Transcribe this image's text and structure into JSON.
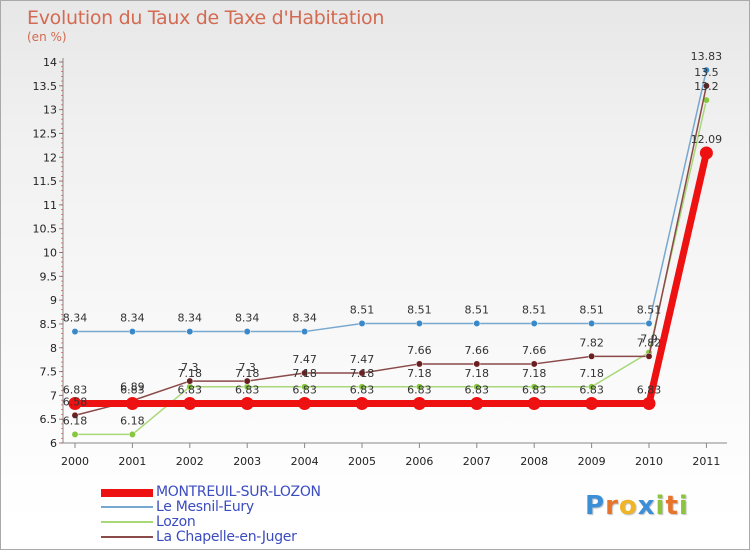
{
  "title": "Evolution du Taux de Taxe d'Habitation",
  "subtitle": "(en %)",
  "logo": {
    "text": "Proxiti",
    "letters": [
      "P",
      "r",
      "o",
      "x",
      "i",
      "t",
      "i"
    ],
    "colors": [
      "#3a8fd8",
      "#e8742c",
      "#f0b428",
      "#3a8fd8",
      "#8cc43c",
      "#e8742c",
      "#8cc43c"
    ]
  },
  "chart_data": {
    "type": "line",
    "title": "Evolution du Taux de Taxe d'Habitation",
    "ylabel": "(en %)",
    "xlabel": "",
    "ylim": [
      6,
      14
    ],
    "yticks": [
      "6",
      "6.5",
      "7",
      "7.5",
      "8",
      "8.5",
      "9",
      "9.5",
      "10",
      "10.5",
      "11",
      "11.5",
      "12",
      "12.5",
      "13",
      "13.5",
      "14"
    ],
    "categories": [
      "2000",
      "2001",
      "2002",
      "2003",
      "2004",
      "2005",
      "2006",
      "2007",
      "2008",
      "2009",
      "2010",
      "2011"
    ],
    "series": [
      {
        "name": "Le Mesnil-Eury",
        "color": "#77a8d0",
        "point_color": "#3a88c8",
        "values": [
          8.34,
          8.34,
          8.34,
          8.34,
          8.34,
          8.51,
          8.51,
          8.51,
          8.51,
          8.51,
          8.51,
          13.83
        ],
        "labels": [
          "8.34",
          "8.34",
          "8.34",
          "8.34",
          "8.34",
          "8.51",
          "8.51",
          "8.51",
          "8.51",
          "8.51",
          "8.51",
          "13.83"
        ]
      },
      {
        "name": "Lozon",
        "color": "#a8d878",
        "point_color": "#88c840",
        "values": [
          6.18,
          6.18,
          7.18,
          7.18,
          7.18,
          7.18,
          7.18,
          7.18,
          7.18,
          7.18,
          7.9,
          13.2
        ],
        "labels": [
          "6.18",
          "6.18",
          "7.18",
          "7.18",
          "7.18",
          "7.18",
          "7.18",
          "7.18",
          "7.18",
          "7.18",
          "7.9",
          "13.2"
        ]
      },
      {
        "name": "La Chapelle-en-Juger",
        "color": "#8a4a4a",
        "point_color": "#6a2020",
        "values": [
          6.58,
          6.89,
          7.3,
          7.3,
          7.47,
          7.47,
          7.66,
          7.66,
          7.66,
          7.82,
          7.82,
          13.5
        ],
        "labels": [
          "6.58",
          "6.89",
          "7.3",
          "7.3",
          "7.47",
          "7.47",
          "7.66",
          "7.66",
          "7.66",
          "7.82",
          "7.82",
          "13.5"
        ]
      },
      {
        "name": "MONTREUIL-SUR-LOZON",
        "color": "#ee1111",
        "point_color": "#ee1111",
        "values": [
          6.83,
          6.83,
          6.83,
          6.83,
          6.83,
          6.83,
          6.83,
          6.83,
          6.83,
          6.83,
          6.83,
          12.09
        ],
        "labels": [
          "6.83",
          "6.83",
          "6.83",
          "6.83",
          "6.83",
          "6.83",
          "6.83",
          "6.83",
          "6.83",
          "6.83",
          "6.83",
          "12.09"
        ]
      }
    ]
  },
  "legend": [
    {
      "label": "MONTREUIL-SUR-LOZON",
      "color": "#ee1111",
      "thick": true
    },
    {
      "label": "Le Mesnil-Eury",
      "color": "#77a8d0",
      "thick": false
    },
    {
      "label": "Lozon",
      "color": "#a8d878",
      "thick": false
    },
    {
      "label": "La Chapelle-en-Juger",
      "color": "#8a4a4a",
      "thick": false
    }
  ]
}
